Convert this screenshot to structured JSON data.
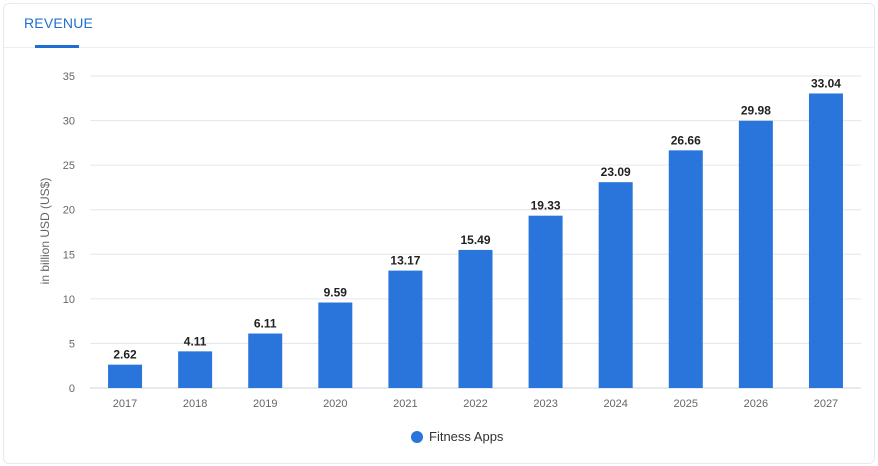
{
  "tab": {
    "label": "REVENUE"
  },
  "colors": {
    "accent": "#1f6fd1",
    "bar": "#2975db",
    "grid": "#e3e6ea",
    "axis_text": "#666666"
  },
  "chart_data": {
    "type": "bar",
    "title": "",
    "xlabel": "",
    "ylabel": "in billion USD (US$)",
    "ylim": [
      0,
      35
    ],
    "yticks": [
      0,
      5,
      10,
      15,
      20,
      25,
      30,
      35
    ],
    "grid": true,
    "legend_position": "bottom-center",
    "categories": [
      "2017",
      "2018",
      "2019",
      "2020",
      "2021",
      "2022",
      "2023",
      "2024",
      "2025",
      "2026",
      "2027"
    ],
    "series": [
      {
        "name": "Fitness Apps",
        "values": [
          2.62,
          4.11,
          6.11,
          9.59,
          13.17,
          15.49,
          19.33,
          23.09,
          26.66,
          29.98,
          33.04
        ]
      }
    ]
  }
}
